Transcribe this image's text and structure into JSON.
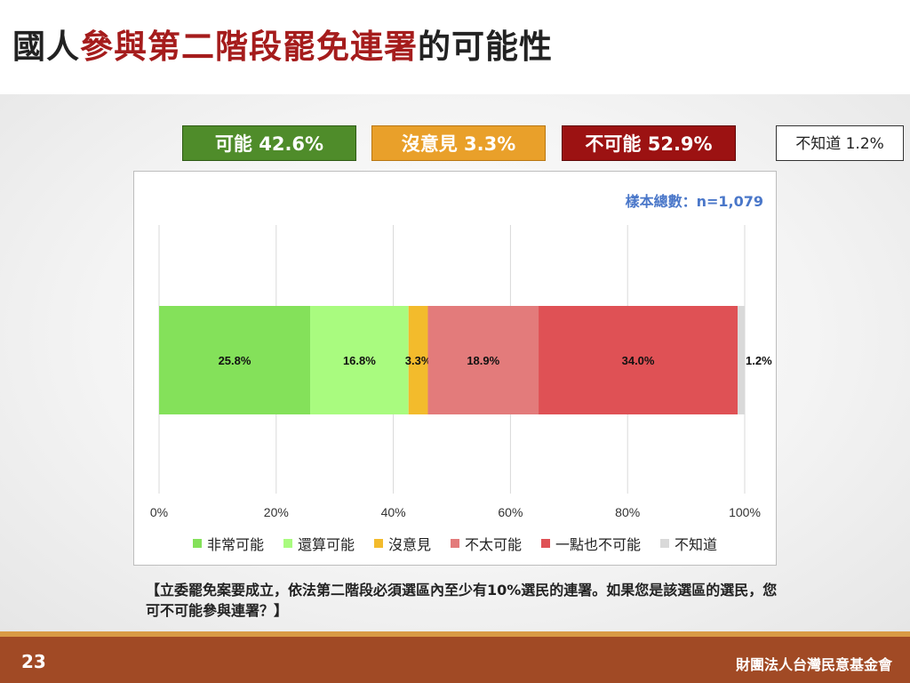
{
  "title": {
    "part1": "國人",
    "part2": "參與第二階段罷免連署",
    "part3": "的可能性"
  },
  "summary": {
    "possible": "可能 42.6%",
    "neutral": "沒意見 3.3%",
    "impossible": "不可能 52.9%",
    "unknown": "不知道 1.2%"
  },
  "sample_size": "樣本總數：n=1,079",
  "question": "【立委罷免案要成立，依法第二階段必須選區內至少有10%選民的連署。如果您是該選區的選民，您可不可能參與連署？】",
  "page_number": "23",
  "organization": "財團法人台灣民意基金會",
  "chart_data": {
    "type": "bar",
    "stacked": true,
    "orientation": "horizontal",
    "categories": [
      ""
    ],
    "series": [
      {
        "name": "非常可能",
        "values": [
          25.8
        ],
        "label": "25.8%",
        "color": "#84e15a"
      },
      {
        "name": "還算可能",
        "values": [
          16.8
        ],
        "label": "16.8%",
        "color": "#a9fb7f"
      },
      {
        "name": "沒意見",
        "values": [
          3.3
        ],
        "label": "3.3%",
        "color": "#f3bb2c"
      },
      {
        "name": "不太可能",
        "values": [
          18.9
        ],
        "label": "18.9%",
        "color": "#e37b7b"
      },
      {
        "name": "一點也不可能",
        "values": [
          34.0
        ],
        "label": "34.0%",
        "color": "#df5155"
      },
      {
        "name": "不知道",
        "values": [
          1.2
        ],
        "label": "1.2%",
        "color": "#d9d9d9"
      }
    ],
    "xlim": [
      0,
      100
    ],
    "xticks": [
      "0%",
      "20%",
      "40%",
      "60%",
      "80%",
      "100%"
    ],
    "grid": true,
    "legend": "bottom"
  }
}
